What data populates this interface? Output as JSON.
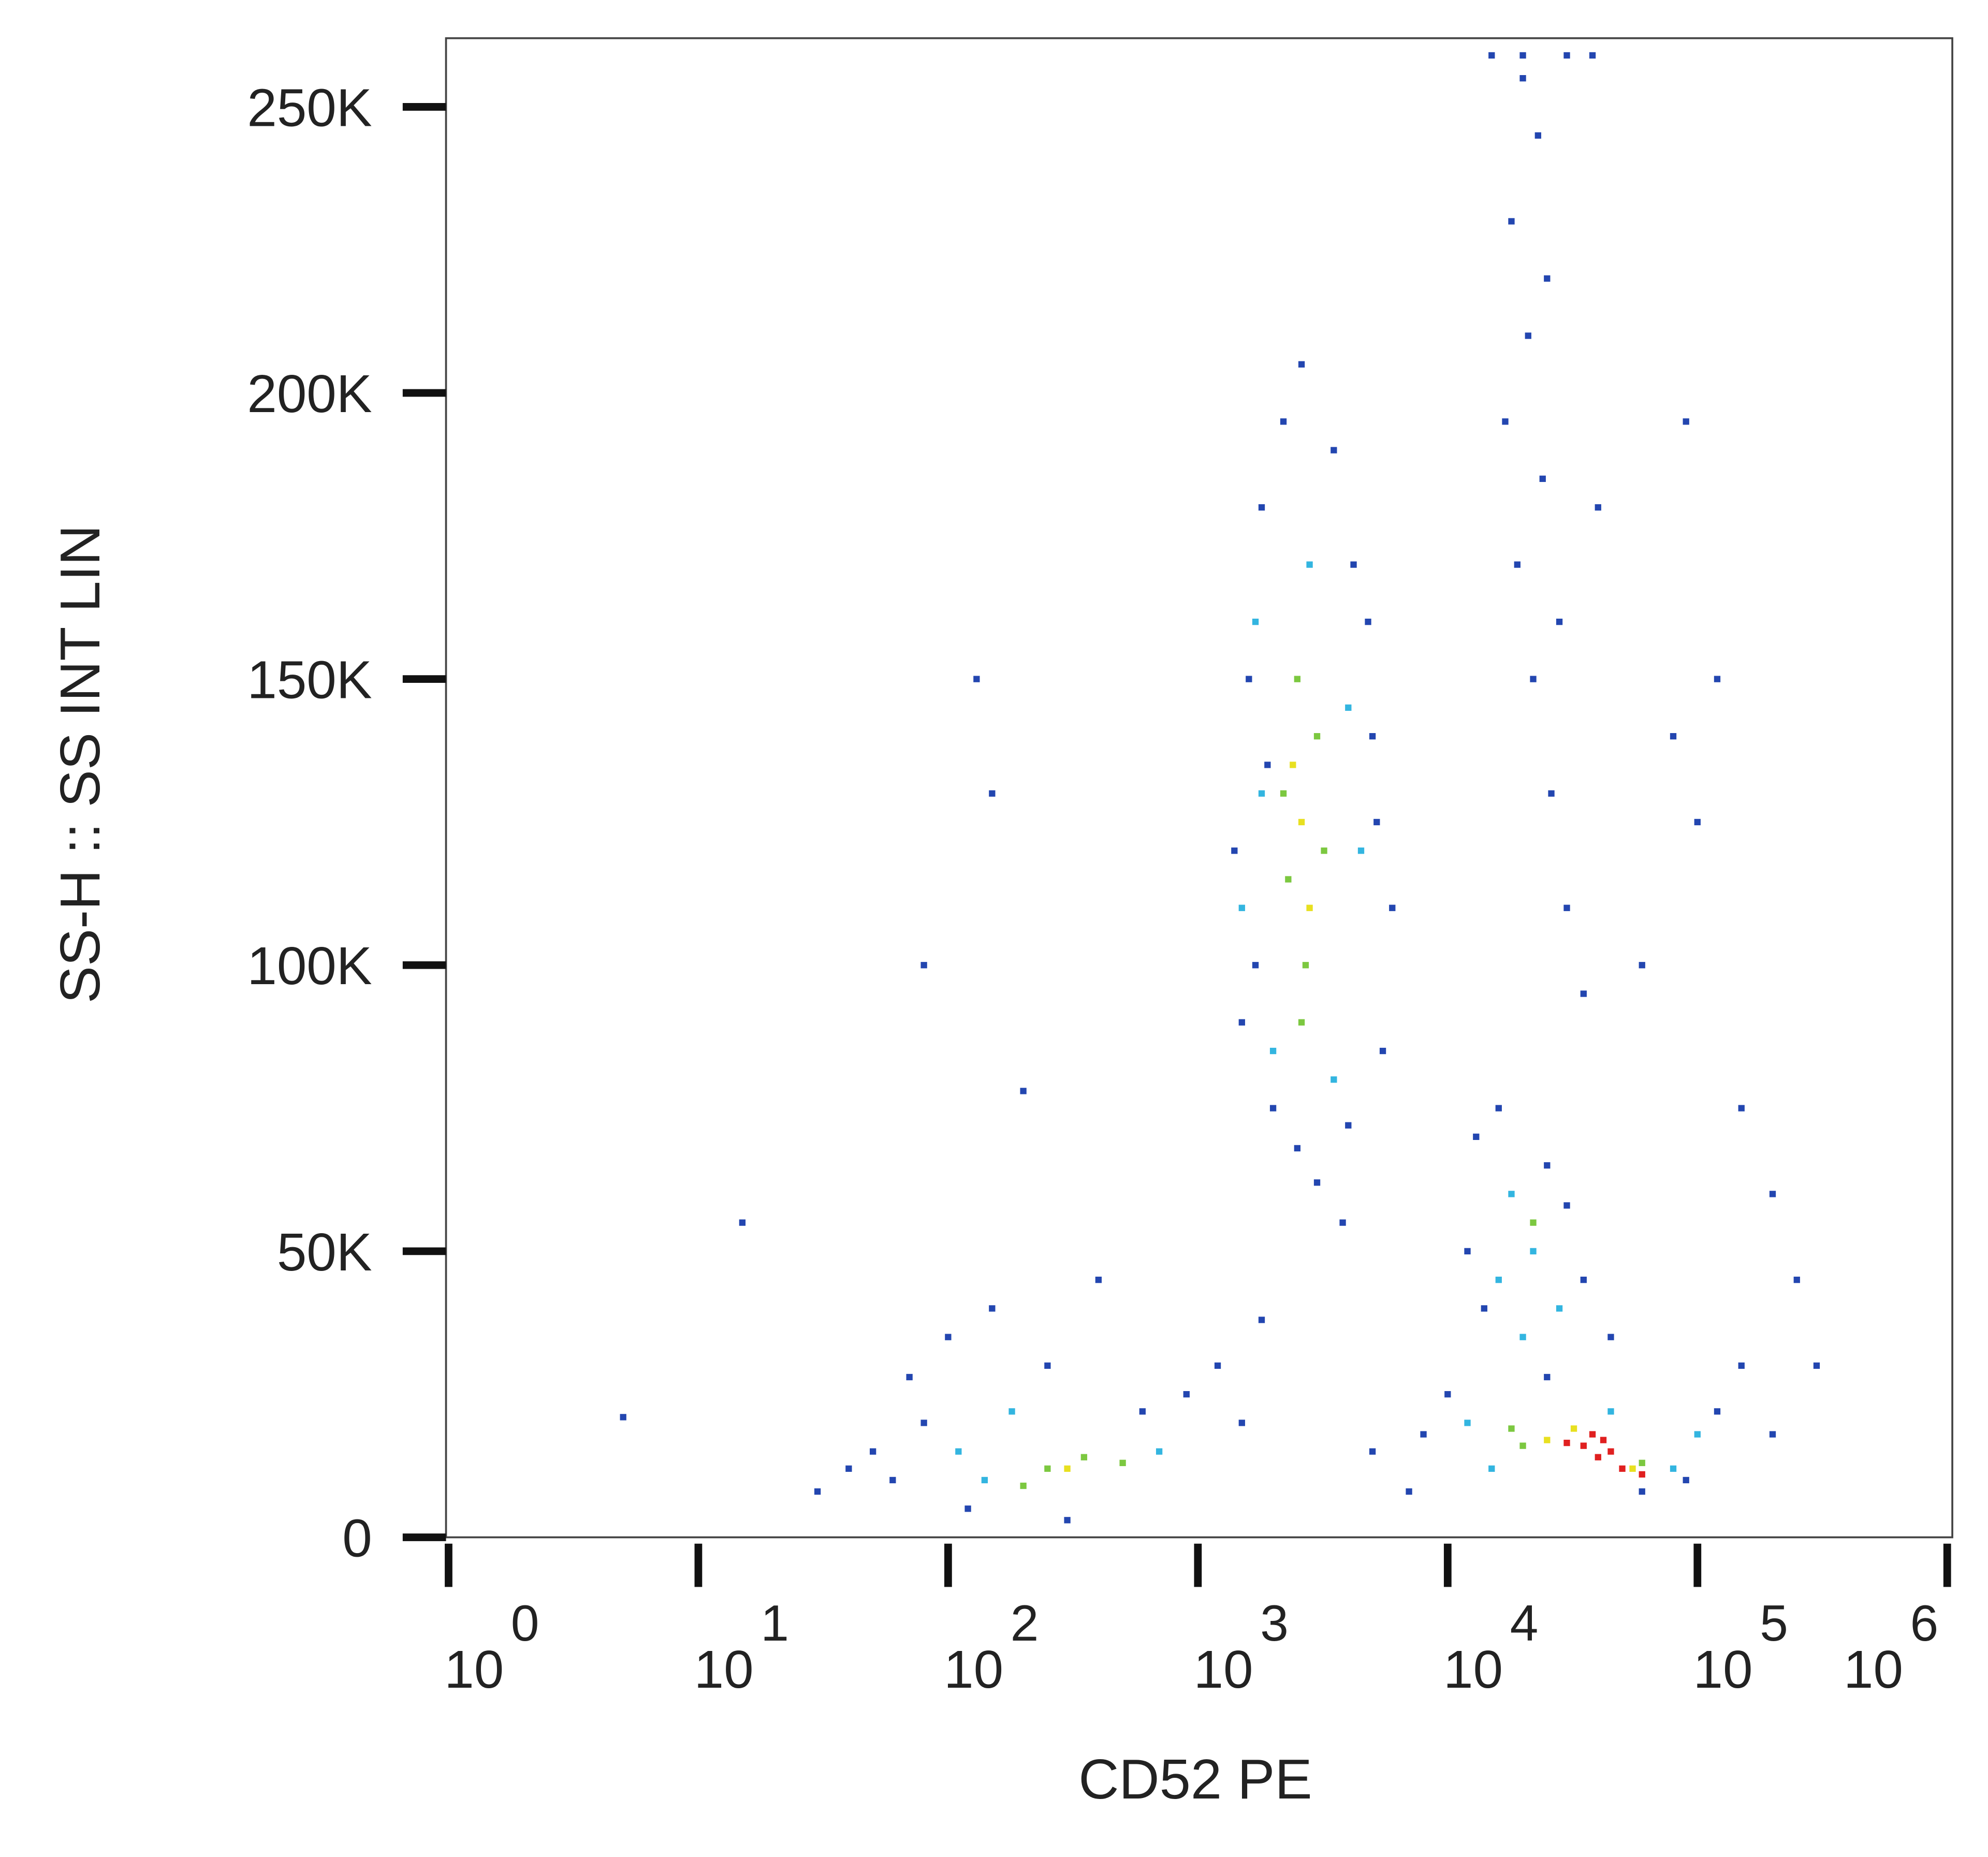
{
  "chart_data": {
    "type": "scatter",
    "x_label": "CD52 PE",
    "y_label": "SS-H :: SS INT LIN",
    "xlog": true,
    "xlim": [
      1,
      1000000
    ],
    "ylim": [
      0,
      262000
    ],
    "xticks": [
      {
        "value": 1,
        "label": "10",
        "superscript": "0"
      },
      {
        "value": 10,
        "label": "10",
        "superscript": "1"
      },
      {
        "value": 100,
        "label": "10",
        "superscript": "2"
      },
      {
        "value": 1000,
        "label": "10",
        "superscript": "3"
      },
      {
        "value": 10000,
        "label": "10",
        "superscript": "4"
      },
      {
        "value": 100000,
        "label": "10",
        "superscript": "5"
      },
      {
        "value": 1000000,
        "label": "10",
        "superscript": "6"
      }
    ],
    "yticks": [
      0,
      {
        "value": 50000,
        "label": "50K"
      },
      {
        "value": 100000,
        "label": "100K"
      },
      {
        "value": 150000,
        "label": "150K"
      },
      {
        "value": 200000,
        "label": "200K"
      },
      {
        "value": 250000,
        "label": "250K"
      }
    ],
    "series": [
      {
        "color": "#2346b0",
        "x": [
          1800,
          2200,
          3500,
          4200,
          1600,
          5000,
          1400,
          6000,
          1500,
          5500,
          2000,
          4000,
          2500,
          3000,
          1700,
          4800,
          2600,
          3800,
          1900,
          5200,
          20000,
          23000,
          18000,
          25000,
          21000,
          17000,
          24000,
          19000,
          28000,
          22000,
          26000,
          30000,
          35000,
          15000,
          20000,
          30000,
          38000,
          40000,
          90000,
          120000,
          100000,
          60000,
          150000,
          200000,
          80000,
          250000,
          300000,
          130,
          150,
          80,
          200,
          15,
          5,
          30,
          50,
          13000,
          16000,
          25000,
          12000,
          35000,
          45000,
          14000,
          30000,
          60,
          80,
          100,
          120,
          150,
          250,
          70,
          400,
          600,
          900,
          1200,
          1500,
          1800,
          40,
          300,
          8000,
          10000,
          90000,
          120000,
          150000,
          60000,
          200000,
          5000,
          7000,
          25000
        ],
        "values": [
          180000,
          195000,
          190000,
          170000,
          150000,
          140000,
          120000,
          110000,
          90000,
          85000,
          75000,
          72000,
          68000,
          62000,
          100000,
          160000,
          205000,
          55000,
          135000,
          125000,
          255000,
          245000,
          230000,
          220000,
          210000,
          195000,
          185000,
          170000,
          160000,
          150000,
          130000,
          110000,
          95000,
          259000,
          259000,
          259000,
          259000,
          180000,
          195000,
          150000,
          125000,
          100000,
          75000,
          60000,
          140000,
          45000,
          30000,
          150000,
          130000,
          100000,
          78000,
          55000,
          21000,
          8000,
          15000,
          70000,
          75000,
          65000,
          50000,
          45000,
          35000,
          40000,
          58000,
          10000,
          20000,
          35000,
          5000,
          40000,
          30000,
          28000,
          45000,
          22000,
          25000,
          30000,
          20000,
          38000,
          12000,
          3000,
          18000,
          25000,
          10000,
          22000,
          30000,
          8000,
          18000,
          15000,
          8000,
          28000
        ]
      },
      {
        "color": "#33b5e0",
        "x": [
          1700,
          2800,
          1500,
          4500,
          2000,
          3500,
          1800,
          4000,
          18000,
          22000,
          16000,
          28000,
          20000,
          110,
          180,
          140,
          700,
          12000,
          100000,
          15000,
          80000,
          45000
        ],
        "values": [
          160000,
          170000,
          110000,
          120000,
          85000,
          80000,
          130000,
          145000,
          60000,
          50000,
          45000,
          40000,
          35000,
          15000,
          22000,
          10000,
          15000,
          20000,
          18000,
          12000,
          12000,
          22000
        ]
      },
      {
        "color": "#7cc840",
        "x": [
          2500,
          2200,
          3000,
          2700,
          2300,
          3200,
          2600,
          250,
          350,
          200,
          500,
          20000,
          60000,
          18000,
          22000
        ],
        "values": [
          150000,
          130000,
          140000,
          100000,
          115000,
          120000,
          90000,
          12000,
          14000,
          9000,
          13000,
          16000,
          13000,
          19000,
          55000
        ]
      },
      {
        "color": "#e8e020",
        "x": [
          2600,
          2800,
          2400,
          300,
          25000,
          55000,
          32000
        ],
        "values": [
          125000,
          110000,
          135000,
          12000,
          17000,
          12000,
          19000
        ]
      },
      {
        "color": "#e02020",
        "x": [
          35000,
          40000,
          45000,
          50000,
          38000,
          42000,
          60000,
          30000
        ],
        "values": [
          16000,
          14000,
          15000,
          12000,
          18000,
          17000,
          11000,
          16500
        ]
      }
    ]
  }
}
